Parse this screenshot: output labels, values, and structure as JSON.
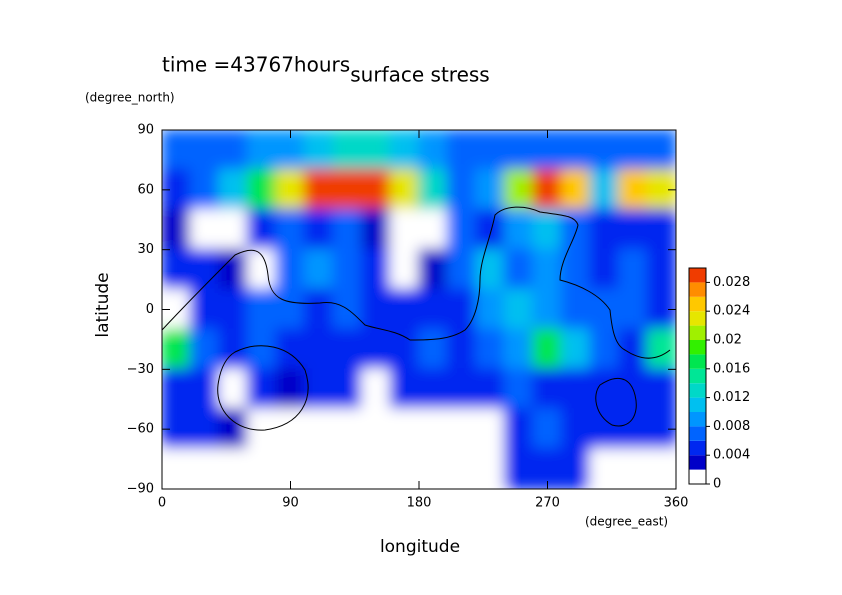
{
  "chart_data": {
    "type": "contour",
    "title": "surface stress",
    "subtitle": "time =43767hours",
    "x_label": "longitude",
    "y_label": "latitude",
    "x_units": "(degree_east)",
    "y_units": "(degree_north)",
    "xlim": [
      0,
      360
    ],
    "ylim": [
      -90,
      90
    ],
    "xticks": [
      0,
      90,
      180,
      270,
      360
    ],
    "yticks": [
      {
        "value": -90,
        "label": "−90"
      },
      {
        "value": -60,
        "label": "−60"
      },
      {
        "value": -30,
        "label": "−30"
      },
      0,
      30,
      60,
      90
    ],
    "x": [
      10,
      30,
      50,
      70,
      90,
      110,
      130,
      150,
      170,
      190,
      210,
      230,
      250,
      270,
      290,
      310,
      330,
      350
    ],
    "y": [
      80,
      60,
      40,
      20,
      0,
      -20,
      -40,
      -60,
      -80
    ],
    "z": [
      [
        0.006,
        0.006,
        0.006,
        0.008,
        0.008,
        0.01,
        0.012,
        0.012,
        0.01,
        0.008,
        0.006,
        0.006,
        0.006,
        0.006,
        0.006,
        0.006,
        0.006,
        0.006
      ],
      [
        0.004,
        0.006,
        0.01,
        0.016,
        0.022,
        0.028,
        0.03,
        0.028,
        0.022,
        0.012,
        0.006,
        0.008,
        0.02,
        0.028,
        0.024,
        0.01,
        0.024,
        0.022
      ],
      [
        0.002,
        0.001,
        0.001,
        0.004,
        0.006,
        0.004,
        0.006,
        0.002,
        0.001,
        0.001,
        0.006,
        0.004,
        0.008,
        0.01,
        0.006,
        0.004,
        0.004,
        0.004
      ],
      [
        0.004,
        0.004,
        0.002,
        0.001,
        0.006,
        0.008,
        0.006,
        0.004,
        0.001,
        0.002,
        0.006,
        0.01,
        0.006,
        0.008,
        0.006,
        0.004,
        0.006,
        0.004
      ],
      [
        0.001,
        0.004,
        0.004,
        0.006,
        0.006,
        0.004,
        0.006,
        0.004,
        0.004,
        0.004,
        0.004,
        0.008,
        0.01,
        0.008,
        0.006,
        0.006,
        0.006,
        0.004
      ],
      [
        0.016,
        0.006,
        0.004,
        0.006,
        0.004,
        0.004,
        0.004,
        0.004,
        0.004,
        0.006,
        0.004,
        0.006,
        0.008,
        0.016,
        0.01,
        0.006,
        0.004,
        0.014
      ],
      [
        0.004,
        0.004,
        0.001,
        0.004,
        0.002,
        0.004,
        0.004,
        0.001,
        0.004,
        0.004,
        0.004,
        0.004,
        0.006,
        0.004,
        0.004,
        0.004,
        0.004,
        0.004
      ],
      [
        0.004,
        0.004,
        0.002,
        0.001,
        0.001,
        0.001,
        0.001,
        0.001,
        0.001,
        0.001,
        0.001,
        0.001,
        0.004,
        0.006,
        0.004,
        0.004,
        0.004,
        0.004
      ],
      [
        0.001,
        0.001,
        0.001,
        0.001,
        0.001,
        0.001,
        0.001,
        0.001,
        0.001,
        0.001,
        0.001,
        0.001,
        0.004,
        0.004,
        0.004,
        0.001,
        0.001,
        0.001
      ]
    ],
    "levels": [
      0,
      0.002,
      0.004,
      0.006,
      0.008,
      0.01,
      0.012,
      0.014,
      0.016,
      0.018,
      0.02,
      0.022,
      0.024,
      0.026,
      0.028,
      0.03
    ],
    "colors": [
      "#ffffff",
      "#0000c8",
      "#0028f0",
      "#0064ff",
      "#0096ff",
      "#00c0f0",
      "#00d8c8",
      "#00e696",
      "#00e650",
      "#32f000",
      "#a0f000",
      "#e6e600",
      "#ffc800",
      "#ff8c00",
      "#f03c00"
    ],
    "colorbar_ticks": [
      0,
      0.004,
      0.008,
      0.012,
      0.016,
      0.02,
      0.024,
      0.028
    ]
  }
}
